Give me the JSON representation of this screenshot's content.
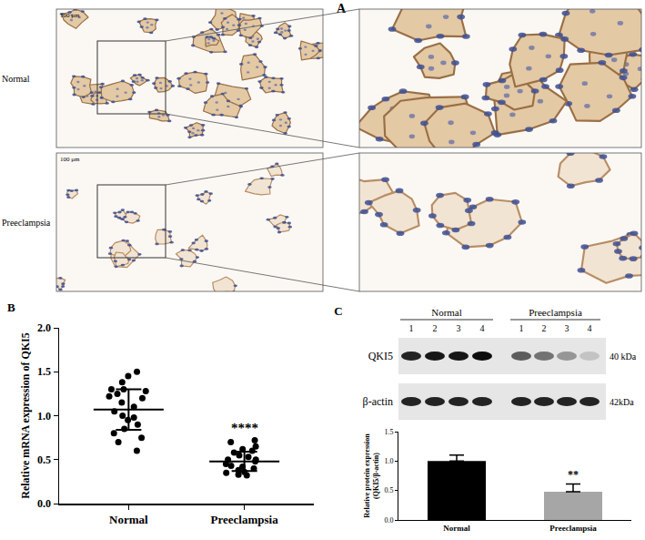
{
  "image_panel": {
    "label": "A",
    "rows": [
      {
        "label": "Normal",
        "scale_bar": "100 μm"
      },
      {
        "label": "Preeclampsia",
        "scale_bar": "100 μm"
      }
    ]
  },
  "blot": {
    "groups": [
      {
        "label": "Normal",
        "lanes": [
          "1",
          "2",
          "3",
          "4"
        ]
      },
      {
        "label": "Preeclampsia",
        "lanes": [
          "1",
          "2",
          "3",
          "4"
        ]
      }
    ],
    "rows": [
      {
        "label": "QKI5",
        "size": "40 kDa",
        "intensity": [
          0.85,
          0.9,
          0.9,
          0.95,
          0.6,
          0.5,
          0.35,
          0.15
        ]
      },
      {
        "label": "β-actin",
        "size": "42kDa",
        "intensity": [
          0.85,
          0.85,
          0.85,
          0.85,
          0.85,
          0.85,
          0.85,
          0.85
        ]
      }
    ]
  },
  "chart_data": [
    {
      "panel": "B",
      "type": "scatter",
      "categories": [
        "Normal",
        "Preeclampsia"
      ],
      "values": [
        [
          1.5,
          1.45,
          1.38,
          1.3,
          1.3,
          1.28,
          1.25,
          1.22,
          1.2,
          1.15,
          1.1,
          1.05,
          1.0,
          0.98,
          0.95,
          0.9,
          0.85,
          0.8,
          0.75,
          0.7,
          0.6
        ],
        [
          0.72,
          0.7,
          0.65,
          0.62,
          0.6,
          0.58,
          0.55,
          0.53,
          0.5,
          0.5,
          0.48,
          0.45,
          0.43,
          0.42,
          0.4,
          0.38,
          0.36,
          0.35,
          0.33,
          0.32
        ]
      ],
      "mean": [
        1.07,
        0.48
      ],
      "sd": [
        0.23,
        0.11
      ],
      "ylabel": "Relative mRNA expression of QKI5",
      "ylim": [
        0,
        2
      ],
      "yticks": [
        {
          "value": 0,
          "label": "0.0"
        },
        {
          "value": 0.5,
          "label": "0.5"
        },
        {
          "value": 1,
          "label": "1.0"
        },
        {
          "value": 1.5,
          "label": "1.5"
        },
        {
          "value": 2,
          "label": "2.0"
        }
      ],
      "marker": "circle",
      "color": "#000000",
      "annotations": [
        {
          "text": "****",
          "category": "Preeclampsia",
          "y": 0.76
        }
      ]
    },
    {
      "panel": "C",
      "type": "bar",
      "categories": [
        "Normal",
        "Preeclampsia"
      ],
      "values": [
        1.0,
        0.48
      ],
      "error": [
        0.1,
        0.13
      ],
      "colors": [
        "#000000",
        "#a6a6a6"
      ],
      "ylabel": [
        "Relative protein expression",
        "(QKI5/β-actin)"
      ],
      "ylim": [
        0,
        1.5
      ],
      "yticks": [
        {
          "value": 0,
          "label": "0.0"
        },
        {
          "value": 0.5,
          "label": "0.5"
        },
        {
          "value": 1,
          "label": "1.0"
        },
        {
          "value": 1.5,
          "label": "1.5"
        }
      ],
      "annotations": [
        {
          "text": "**",
          "category": "Preeclampsia",
          "y": 0.63
        }
      ]
    }
  ]
}
